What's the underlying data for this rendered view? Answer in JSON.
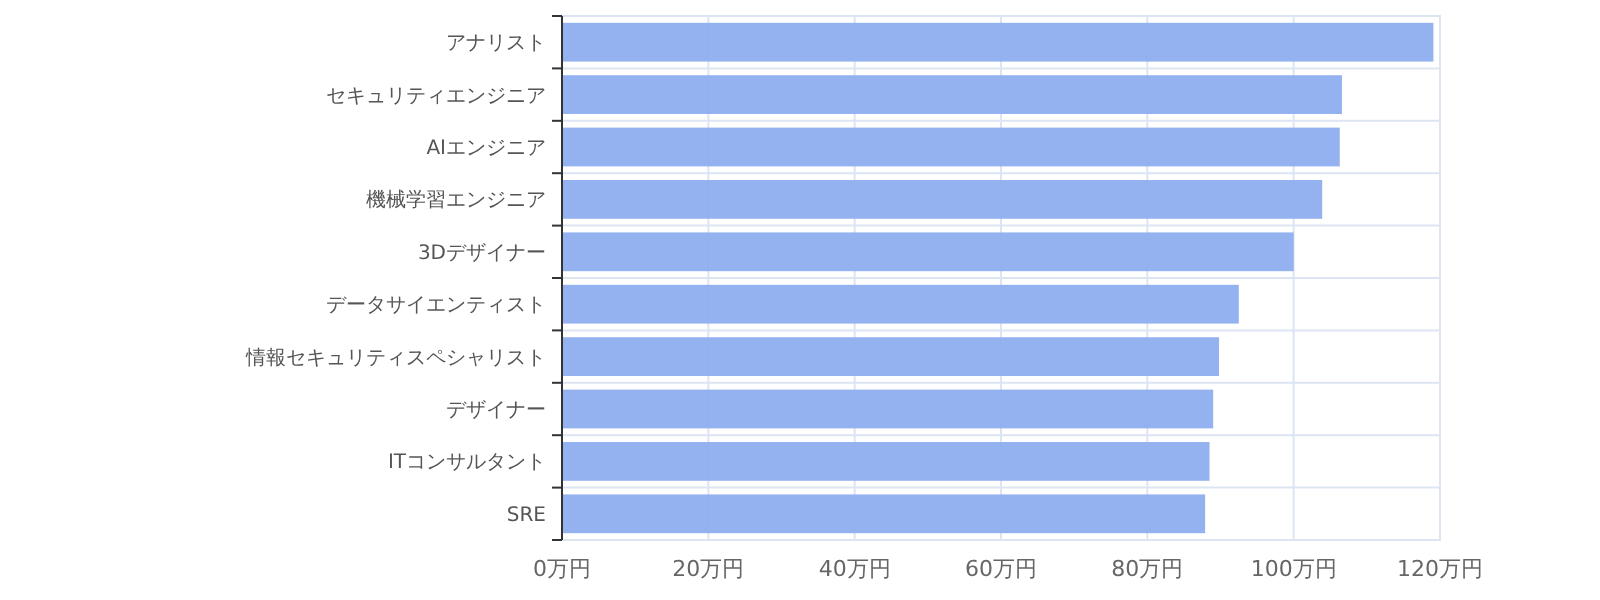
{
  "chart_data": {
    "type": "bar",
    "orientation": "horizontal",
    "categories": [
      "アナリスト",
      "セキュリティエンジニア",
      "AIエンジニア",
      "機械学習エンジニア",
      "3Dデザイナー",
      "データサイエンティスト",
      "情報セキュリティスペシャリスト",
      "デザイナー",
      "ITコンサルタント",
      "SRE"
    ],
    "values": [
      119.1,
      106.6,
      106.3,
      103.9,
      100.0,
      92.5,
      89.8,
      89.0,
      88.5,
      87.9
    ],
    "color": "#8eaeee",
    "xlim": [
      0,
      120
    ],
    "xticks": [
      {
        "value": 0,
        "label": "0万円"
      },
      {
        "value": 20,
        "label": "20万円"
      },
      {
        "value": 40,
        "label": "40万円"
      },
      {
        "value": 60,
        "label": "60万円"
      },
      {
        "value": 80,
        "label": "80万円"
      },
      {
        "value": 100,
        "label": "100万円"
      },
      {
        "value": 120,
        "label": "120万円"
      }
    ],
    "grid": true
  }
}
